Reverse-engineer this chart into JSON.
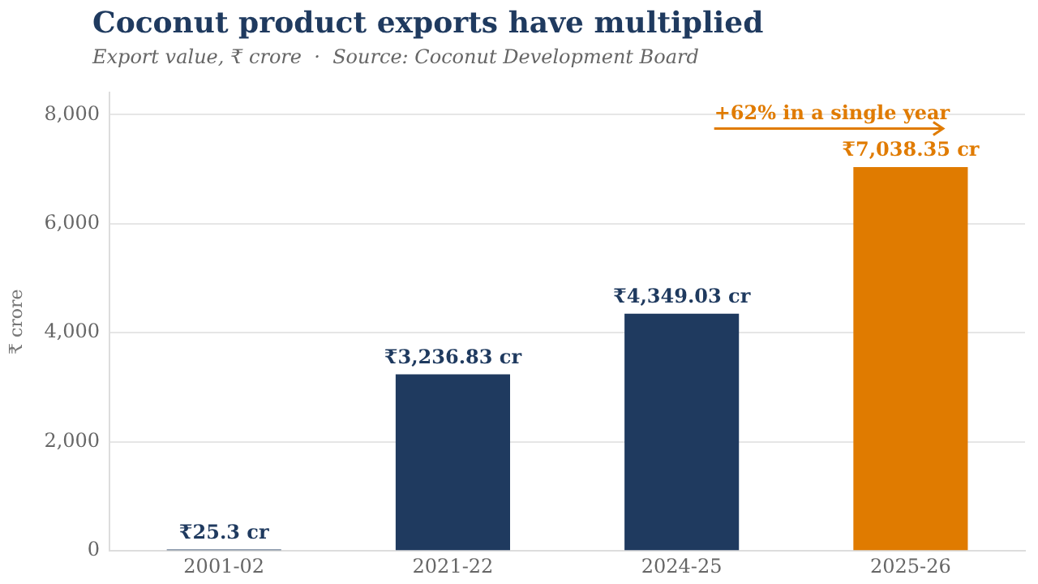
{
  "chart_data": {
    "type": "bar",
    "title": "Coconut product exports have multiplied",
    "subtitle": "Export value, ₹ crore  ·  Source: Coconut Development Board",
    "ylabel": "₹ crore",
    "categories": [
      "2001-02",
      "2021-22",
      "2024-25",
      "2025-26"
    ],
    "values": [
      25.3,
      3236.83,
      4349.03,
      7038.35
    ],
    "colors": [
      "#1f3a5f",
      "#1f3a5f",
      "#1f3a5f",
      "#e07b00"
    ],
    "value_labels": [
      "₹25.3 cr",
      "₹3,236.83 cr",
      "₹4,349.03 cr",
      "₹7,038.35 cr"
    ],
    "ylim": [
      0,
      8400
    ],
    "yticks": [
      {
        "value": 0,
        "label": "0"
      },
      {
        "value": 2000,
        "label": "2,000"
      },
      {
        "value": 4000,
        "label": "4,000"
      },
      {
        "value": 6000,
        "label": "6,000"
      },
      {
        "value": 8000,
        "label": "8,000"
      }
    ],
    "grid": "y",
    "legend": false,
    "annotations": [
      "+62% in a single year"
    ]
  }
}
